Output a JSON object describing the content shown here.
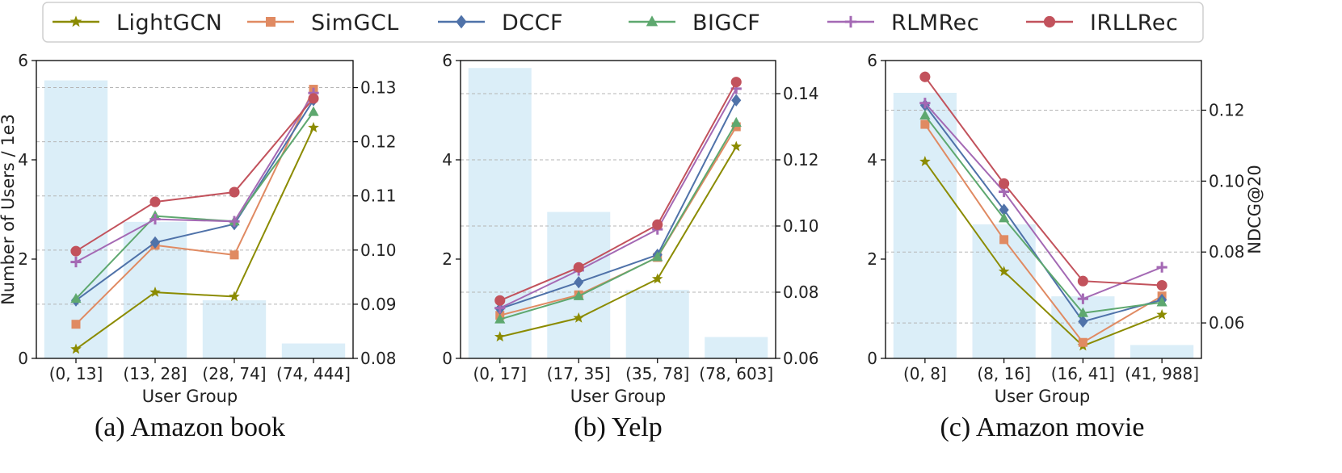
{
  "legend": [
    "LightGCN",
    "SimGCL",
    "DCCF",
    "BIGCF",
    "RLMRec",
    "IRLLRec"
  ],
  "styles": {
    "LightGCN": {
      "color": "#8b8b00",
      "marker": "star"
    },
    "SimGCL": {
      "color": "#e08a62",
      "marker": "square"
    },
    "DCCF": {
      "color": "#4f72a9",
      "marker": "diamond"
    },
    "BIGCF": {
      "color": "#5ea86f",
      "marker": "triangle"
    },
    "RLMRec": {
      "color": "#a469b4",
      "marker": "plus"
    },
    "IRLLRec": {
      "color": "#c2525c",
      "marker": "circle"
    }
  },
  "bar_color": "#dbeef8",
  "chart_data": [
    {
      "type": "bar+line",
      "caption": "(a) Amazon book",
      "xlabel": "User Group",
      "ylabel_left": "Number of Users / 1e3",
      "ylabel_right": "",
      "ylim_left": [
        0,
        6
      ],
      "ylim_right": [
        0.08,
        0.135
      ],
      "yticks_left": [
        "0",
        "2",
        "4",
        "6"
      ],
      "yticks_right": [
        "0.08",
        "0.09",
        "0.10",
        "0.11",
        "0.12",
        "0.13"
      ],
      "categories": [
        "(0, 13]",
        "(13, 28]",
        "(28, 74]",
        "(74, 444]"
      ],
      "bars": [
        5.6,
        2.75,
        1.17,
        0.3
      ],
      "series": [
        {
          "name": "LightGCN",
          "values": [
            0.0817,
            0.0922,
            0.0914,
            0.1226
          ]
        },
        {
          "name": "SimGCL",
          "values": [
            0.0863,
            0.1009,
            0.0991,
            0.1297
          ]
        },
        {
          "name": "DCCF",
          "values": [
            0.0907,
            0.1014,
            0.1048,
            0.1277
          ]
        },
        {
          "name": "BIGCF",
          "values": [
            0.091,
            0.1063,
            0.1053,
            0.1255
          ]
        },
        {
          "name": "RLMRec",
          "values": [
            0.0978,
            0.1057,
            0.1053,
            0.129
          ]
        },
        {
          "name": "IRLLRec",
          "values": [
            0.0998,
            0.1089,
            0.1107,
            0.128
          ]
        }
      ]
    },
    {
      "type": "bar+line",
      "caption": "(b) Yelp",
      "xlabel": "User Group",
      "ylabel_left": "",
      "ylabel_right": "",
      "ylim_left": [
        0,
        6
      ],
      "ylim_right": [
        0.06,
        0.15
      ],
      "yticks_left": [
        "0",
        "2",
        "4",
        "6"
      ],
      "yticks_right": [
        "0.06",
        "0.08",
        "0.10",
        "0.12",
        "0.14"
      ],
      "categories": [
        "(0, 17]",
        "(17, 35]",
        "(35, 78]",
        "(78, 603]"
      ],
      "bars": [
        5.85,
        2.95,
        1.38,
        0.43
      ],
      "series": [
        {
          "name": "LightGCN",
          "values": [
            0.0665,
            0.0722,
            0.084,
            0.124
          ]
        },
        {
          "name": "SimGCL",
          "values": [
            0.073,
            0.0792,
            0.0905,
            0.13
          ]
        },
        {
          "name": "DCCF",
          "values": [
            0.075,
            0.083,
            0.0913,
            0.138
          ]
        },
        {
          "name": "BIGCF",
          "values": [
            0.0718,
            0.0788,
            0.0906,
            0.1312
          ]
        },
        {
          "name": "RLMRec",
          "values": [
            0.0752,
            0.0866,
            0.099,
            0.1415
          ]
        },
        {
          "name": "IRLLRec",
          "values": [
            0.0775,
            0.0875,
            0.1004,
            0.1435
          ]
        }
      ]
    },
    {
      "type": "bar+line",
      "caption": "(c) Amazon movie",
      "xlabel": "User Group",
      "ylabel_left": "",
      "ylabel_right": "NDCG@20",
      "ylim_left": [
        0,
        6
      ],
      "ylim_right": [
        0.05,
        0.134
      ],
      "yticks_left": [
        "0",
        "2",
        "4",
        "6"
      ],
      "yticks_right": [
        "0.06",
        "0.08",
        "0.10",
        "0.12"
      ],
      "categories": [
        "(0, 8]",
        "(8, 16]",
        "(16, 41]",
        "(41, 988]"
      ],
      "bars": [
        5.35,
        2.7,
        1.25,
        0.27
      ],
      "series": [
        {
          "name": "LightGCN",
          "values": [
            0.1055,
            0.0745,
            0.0535,
            0.0623
          ]
        },
        {
          "name": "SimGCL",
          "values": [
            0.116,
            0.0835,
            0.0545,
            0.0676
          ]
        },
        {
          "name": "DCCF",
          "values": [
            0.1214,
            0.0919,
            0.0604,
            0.0665
          ]
        },
        {
          "name": "BIGCF",
          "values": [
            0.1185,
            0.0895,
            0.0628,
            0.0658
          ]
        },
        {
          "name": "RLMRec",
          "values": [
            0.122,
            0.097,
            0.0668,
            0.0757
          ]
        },
        {
          "name": "IRLLRec",
          "values": [
            0.1294,
            0.0993,
            0.0718,
            0.0706
          ]
        }
      ]
    }
  ]
}
